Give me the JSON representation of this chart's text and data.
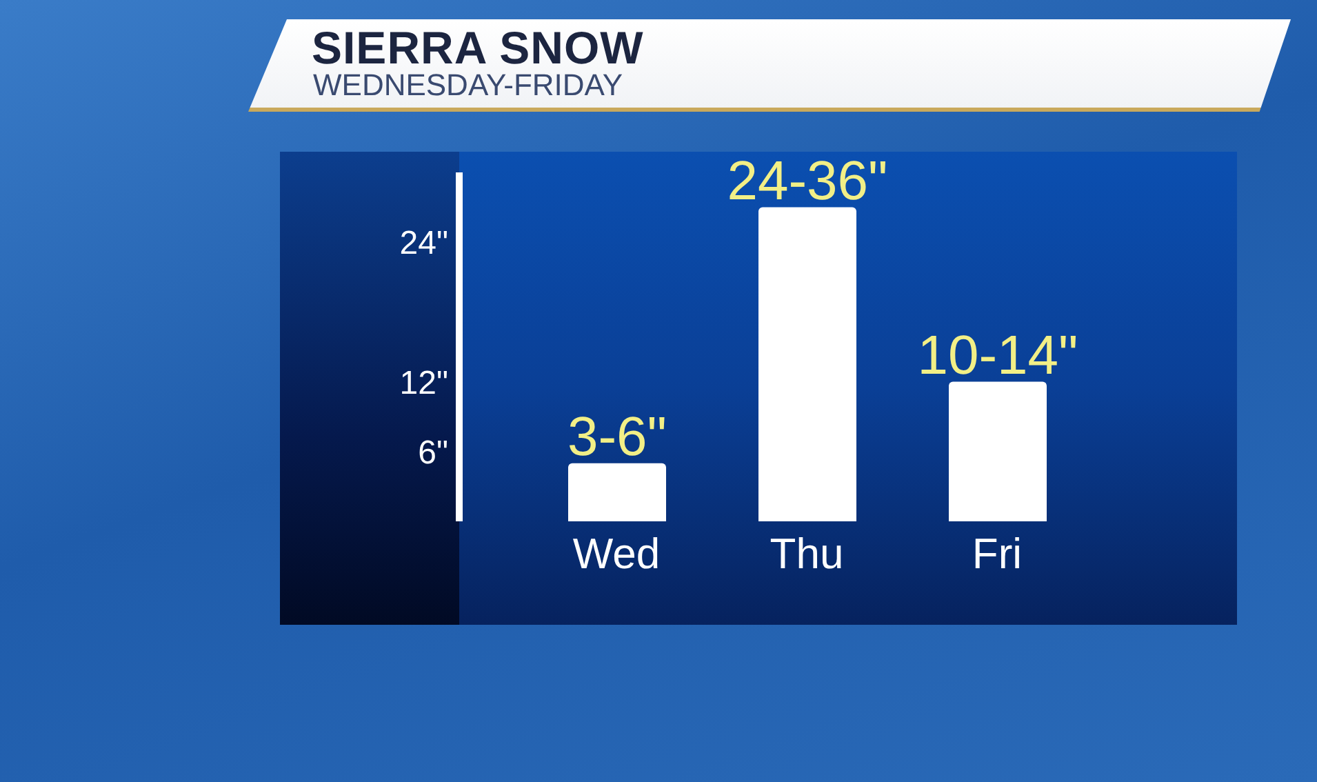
{
  "chart_data": {
    "type": "bar",
    "title": "SIERRA SNOW",
    "subtitle": "WEDNESDAY-FRIDAY",
    "categories": [
      "Wed",
      "Thu",
      "Fri"
    ],
    "values": [
      5,
      27,
      12
    ],
    "value_labels": [
      "3-6\"",
      "24-36\"",
      "10-14\""
    ],
    "color": "#ffffff",
    "ylim": [
      0,
      30
    ],
    "yticks": [
      {
        "value": 6,
        "label": "6\""
      },
      {
        "value": 12,
        "label": "12\""
      },
      {
        "value": 24,
        "label": "24\""
      }
    ]
  }
}
